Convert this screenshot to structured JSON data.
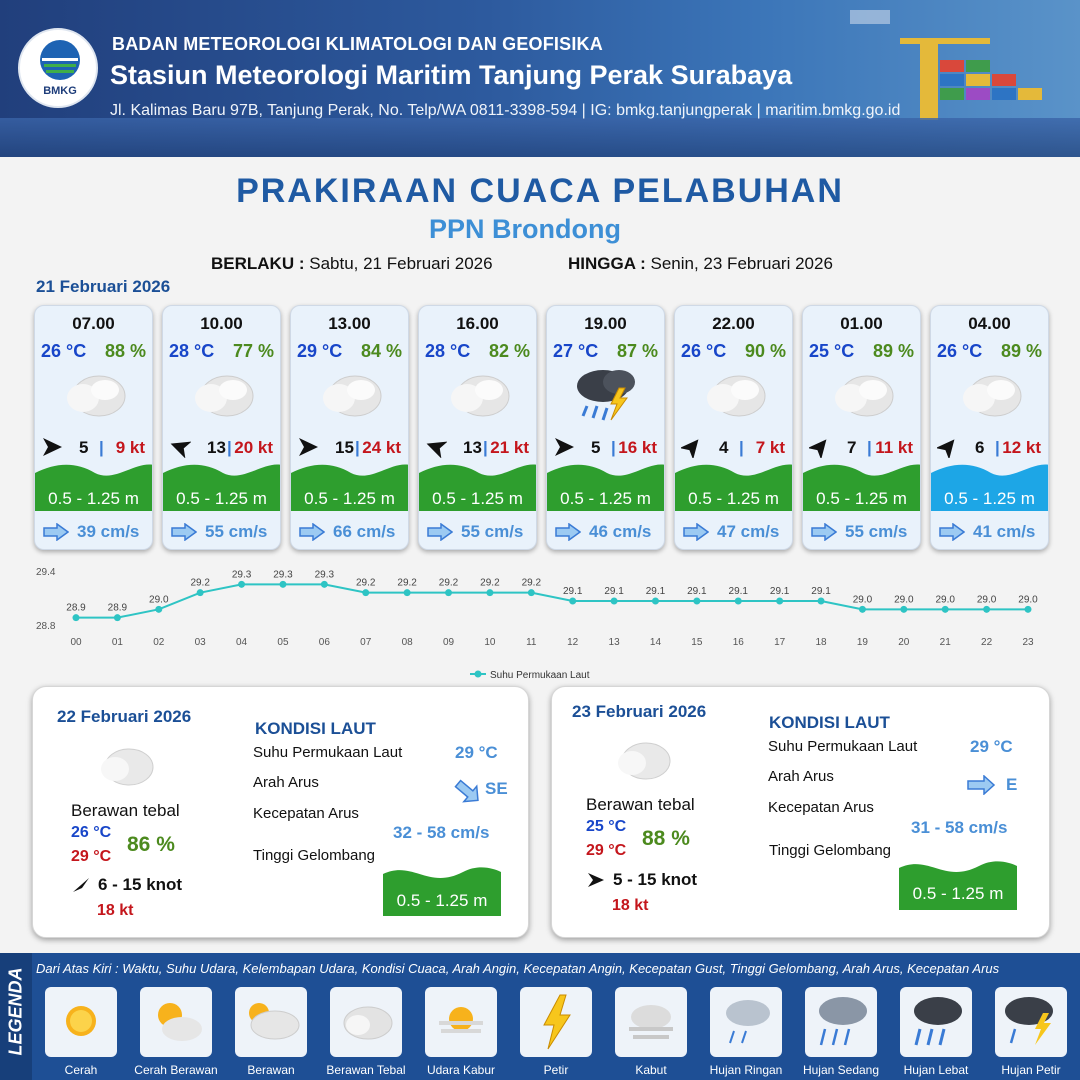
{
  "header": {
    "logo_text": "BMKG",
    "org": "BADAN METEOROLOGI KLIMATOLOGI DAN GEOFISIKA",
    "station": "Stasiun Meteorologi Maritim Tanjung Perak Surabaya",
    "address": "Jl. Kalimas Baru 97B, Tanjung Perak, No. Telp/WA 0811-3398-594 | IG: bmkg.tanjungperak | maritim.bmkg.go.id"
  },
  "title": "PRAKIRAAN CUACA PELABUHAN",
  "subtitle": "PPN Brondong",
  "validity": {
    "from_label": "BERLAKU :",
    "from_value": "Sabtu, 21 Februari 2026",
    "to_label": "HINGGA :",
    "to_value": "Senin, 23 Februari 2026"
  },
  "day1_label": "21 Februari 2026",
  "hourly": [
    {
      "time": "07.00",
      "temp": "26 °C",
      "hum": "88 %",
      "wx": "berawan-tebal",
      "wind_dir": "E",
      "wind": "5",
      "sep": "|",
      "gust": "9 kt",
      "wave": "0.5 - 1.25 m",
      "wave_color": "#2e9e2e",
      "current": "39 cm/s"
    },
    {
      "time": "10.00",
      "temp": "28 °C",
      "hum": "77 %",
      "wx": "berawan-tebal",
      "wind_dir": "SW",
      "wind": "13",
      "sep": "|",
      "gust": "20 kt",
      "wave": "0.5 - 1.25 m",
      "wave_color": "#2e9e2e",
      "current": "55 cm/s"
    },
    {
      "time": "13.00",
      "temp": "29 °C",
      "hum": "84 %",
      "wx": "berawan-tebal",
      "wind_dir": "E",
      "wind": "15",
      "sep": "|",
      "gust": "24 kt",
      "wave": "0.5 - 1.25 m",
      "wave_color": "#2e9e2e",
      "current": "66 cm/s"
    },
    {
      "time": "16.00",
      "temp": "28 °C",
      "hum": "82 %",
      "wx": "berawan-tebal",
      "wind_dir": "SW",
      "wind": "13",
      "sep": "|",
      "gust": "21 kt",
      "wave": "0.5 - 1.25 m",
      "wave_color": "#2e9e2e",
      "current": "55 cm/s"
    },
    {
      "time": "19.00",
      "temp": "27 °C",
      "hum": "87 %",
      "wx": "hujan-petir",
      "wind_dir": "E",
      "wind": "5",
      "sep": "|",
      "gust": "16 kt",
      "wave": "0.5 - 1.25 m",
      "wave_color": "#2e9e2e",
      "current": "46 cm/s"
    },
    {
      "time": "22.00",
      "temp": "26 °C",
      "hum": "90 %",
      "wx": "berawan-tebal",
      "wind_dir": "NE",
      "wind": "4",
      "sep": "|",
      "gust": "7 kt",
      "wave": "0.5 - 1.25 m",
      "wave_color": "#2e9e2e",
      "current": "47 cm/s"
    },
    {
      "time": "01.00",
      "temp": "25 °C",
      "hum": "89 %",
      "wx": "berawan-tebal",
      "wind_dir": "NE",
      "wind": "7",
      "sep": "|",
      "gust": "11 kt",
      "wave": "0.5 - 1.25 m",
      "wave_color": "#2e9e2e",
      "current": "55 cm/s"
    },
    {
      "time": "04.00",
      "temp": "26 °C",
      "hum": "89 %",
      "wx": "berawan-tebal",
      "wind_dir": "NE",
      "wind": "6",
      "sep": "|",
      "gust": "12 kt",
      "wave": "0.5 - 1.25 m",
      "wave_color": "#1da6e6",
      "current": "41 cm/s"
    }
  ],
  "chart_data": {
    "type": "line",
    "x": [
      "00",
      "01",
      "02",
      "03",
      "04",
      "05",
      "06",
      "07",
      "08",
      "09",
      "10",
      "11",
      "12",
      "13",
      "14",
      "15",
      "16",
      "17",
      "18",
      "19",
      "20",
      "21",
      "22",
      "23"
    ],
    "series": [
      {
        "name": "Suhu Permukaan Laut",
        "values": [
          28.9,
          28.9,
          29.0,
          29.2,
          29.3,
          29.3,
          29.3,
          29.2,
          29.2,
          29.2,
          29.2,
          29.2,
          29.1,
          29.1,
          29.1,
          29.1,
          29.1,
          29.1,
          29.1,
          29.0,
          29.0,
          29.0,
          29.0,
          29.0
        ],
        "color": "#2ec4c4"
      }
    ],
    "ylim": [
      28.8,
      29.4
    ],
    "yticks": [
      "29.4",
      "28.8"
    ],
    "data_labels": [
      "28.9",
      "28.9",
      "29.0",
      "29.2",
      "29.3",
      "29.3",
      "29.3",
      "29.2",
      "29.2",
      "29.2",
      "29.2",
      "29.2",
      "29.1",
      "29.1",
      "29.1",
      "29.1",
      "29.1",
      "29.1",
      "29.1",
      "29.0",
      "29.0",
      "29.0",
      "29.0",
      "29.0"
    ],
    "legend": "bottom-center",
    "grid": false
  },
  "panels": [
    {
      "date": "22 Februari 2026",
      "kondisi": "KONDISI LAUT",
      "sst_label": "Suhu Permukaan Laut",
      "sst": "29 °C",
      "arah_label": "Arah Arus",
      "arah": "SE",
      "kec_label": "Kecepatan Arus",
      "kec": "32  - 58 cm/s",
      "tinggi_label": "Tinggi Gelombang",
      "wave": "0.5 - 1.25 m",
      "cond": "Berawan tebal",
      "tmin": "26 °C",
      "tmax": "29 °C",
      "hum": "86 %",
      "wind": "6  - 15 knot",
      "gust": "18 kt"
    },
    {
      "date": "23 Februari 2026",
      "kondisi": "KONDISI LAUT",
      "sst_label": "Suhu Permukaan Laut",
      "sst": "29 °C",
      "arah_label": "Arah Arus",
      "arah": "E",
      "kec_label": "Kecepatan Arus",
      "kec": "31  - 58 cm/s",
      "tinggi_label": "Tinggi Gelombang",
      "wave": "0.5 - 1.25 m",
      "cond": "Berawan tebal",
      "tmin": "25 °C",
      "tmax": "29 °C",
      "hum": "88 %",
      "wind": "5  - 15 knot",
      "gust": "18 kt"
    }
  ],
  "legend": {
    "side_label": "LEGENDA",
    "description": "Dari Atas Kiri : Waktu, Suhu Udara, Kelembapan Udara, Kondisi Cuaca, Arah Angin, Kecepatan Angin, Kecepatan Gust, Tinggi Gelombang, Arah Arus, Kecepatan Arus",
    "items": [
      "Cerah",
      "Cerah Berawan",
      "Berawan",
      "Berawan Tebal",
      "Udara Kabur",
      "Petir",
      "Kabut",
      "Hujan Ringan",
      "Hujan Sedang",
      "Hujan Lebat",
      "Hujan Petir"
    ]
  }
}
